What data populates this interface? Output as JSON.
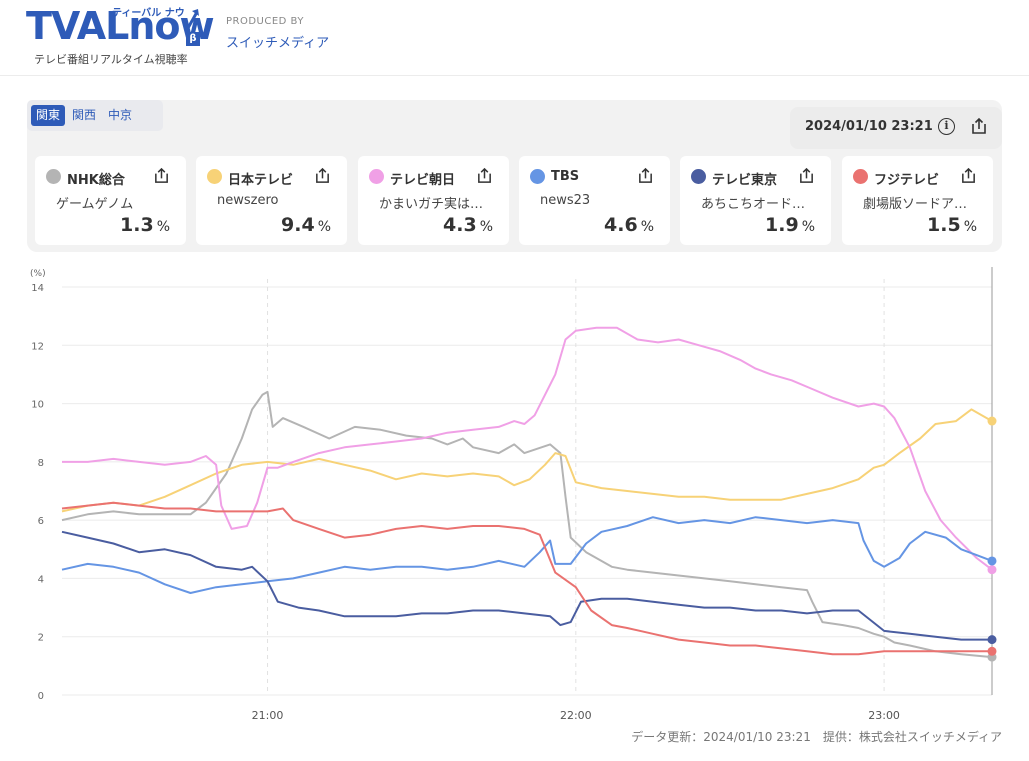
{
  "header": {
    "logo_text": "TVAL",
    "logo_now": "now",
    "logo_ruby": "ティーバル ナウ",
    "logo_beta": "β",
    "logo_sub": "テレビ番組リアルタイム視聴率",
    "produced_by": "PRODUCED BY",
    "producer": "スイッチメディア"
  },
  "regions": [
    {
      "label": "関東",
      "active": true
    },
    {
      "label": "関西",
      "active": false
    },
    {
      "label": "中京",
      "active": false
    }
  ],
  "timestamp": "2024/01/10 23:21",
  "info_icon": "info-icon",
  "share_icon": "share-icon",
  "info_glyph": "i",
  "stations": [
    {
      "name": "NHK総合",
      "program": "ゲームゲノム",
      "value": "1.3",
      "unit": "%",
      "color": "#b4b4b4"
    },
    {
      "name": "日本テレビ",
      "program": "newszero",
      "value": "9.4",
      "unit": "%",
      "color": "#f7d277"
    },
    {
      "name": "テレビ朝日",
      "program": "かまいガチ実は…",
      "value": "4.3",
      "unit": "%",
      "color": "#f0a0e6"
    },
    {
      "name": "TBS",
      "program": "news23",
      "value": "4.6",
      "unit": "%",
      "color": "#6595e4"
    },
    {
      "name": "テレビ東京",
      "program": "あちこちオード…",
      "value": "1.9",
      "unit": "%",
      "color": "#4a5da0"
    },
    {
      "name": "フジテレビ",
      "program": "劇場版ソードア…",
      "value": "1.5",
      "unit": "%",
      "color": "#ea7270"
    }
  ],
  "chart_data": {
    "type": "line",
    "ylabel": "(%)",
    "ylim": [
      0,
      14
    ],
    "yticks": [
      "0",
      "2",
      "4",
      "6",
      "8",
      "10",
      "12",
      "14"
    ],
    "xlim": [
      "20:20",
      "23:21"
    ],
    "xticks": [
      {
        "t": "21:00",
        "label": "21:00"
      },
      {
        "t": "22:00",
        "label": "22:00"
      },
      {
        "t": "23:00",
        "label": "23:00"
      }
    ],
    "grid": true,
    "series": [
      {
        "name": "NHK総合",
        "color": "#b4b4b4",
        "points": [
          [
            0,
            6.0
          ],
          [
            5,
            6.2
          ],
          [
            10,
            6.3
          ],
          [
            15,
            6.2
          ],
          [
            20,
            6.2
          ],
          [
            25,
            6.2
          ],
          [
            28,
            6.6
          ],
          [
            32,
            7.6
          ],
          [
            35,
            8.8
          ],
          [
            37,
            9.8
          ],
          [
            39,
            10.3
          ],
          [
            40,
            10.4
          ],
          [
            41,
            9.2
          ],
          [
            43,
            9.5
          ],
          [
            47,
            9.2
          ],
          [
            52,
            8.8
          ],
          [
            57,
            9.2
          ],
          [
            62,
            9.1
          ],
          [
            67,
            8.9
          ],
          [
            72,
            8.8
          ],
          [
            75,
            8.6
          ],
          [
            78,
            8.8
          ],
          [
            80,
            8.5
          ],
          [
            85,
            8.3
          ],
          [
            88,
            8.6
          ],
          [
            90,
            8.3
          ],
          [
            95,
            8.6
          ],
          [
            97,
            8.3
          ],
          [
            98,
            6.8
          ],
          [
            99,
            5.4
          ],
          [
            102,
            4.9
          ],
          [
            107,
            4.4
          ],
          [
            110,
            4.3
          ],
          [
            115,
            4.2
          ],
          [
            120,
            4.1
          ],
          [
            125,
            4.0
          ],
          [
            130,
            3.9
          ],
          [
            135,
            3.8
          ],
          [
            140,
            3.7
          ],
          [
            145,
            3.6
          ],
          [
            146,
            3.2
          ],
          [
            148,
            2.5
          ],
          [
            152,
            2.4
          ],
          [
            155,
            2.3
          ],
          [
            158,
            2.1
          ],
          [
            160,
            2.0
          ],
          [
            162,
            1.8
          ],
          [
            165,
            1.7
          ],
          [
            170,
            1.5
          ],
          [
            175,
            1.4
          ],
          [
            181,
            1.3
          ]
        ]
      },
      {
        "name": "日本テレビ",
        "color": "#f7d277",
        "points": [
          [
            0,
            6.3
          ],
          [
            5,
            6.5
          ],
          [
            10,
            6.6
          ],
          [
            15,
            6.5
          ],
          [
            20,
            6.8
          ],
          [
            25,
            7.2
          ],
          [
            30,
            7.6
          ],
          [
            35,
            7.9
          ],
          [
            40,
            8.0
          ],
          [
            45,
            7.9
          ],
          [
            50,
            8.1
          ],
          [
            55,
            7.9
          ],
          [
            60,
            7.7
          ],
          [
            65,
            7.4
          ],
          [
            70,
            7.6
          ],
          [
            75,
            7.5
          ],
          [
            80,
            7.6
          ],
          [
            85,
            7.5
          ],
          [
            88,
            7.2
          ],
          [
            91,
            7.4
          ],
          [
            94,
            7.9
          ],
          [
            96,
            8.3
          ],
          [
            98,
            8.2
          ],
          [
            100,
            7.3
          ],
          [
            105,
            7.1
          ],
          [
            110,
            7.0
          ],
          [
            115,
            6.9
          ],
          [
            120,
            6.8
          ],
          [
            125,
            6.8
          ],
          [
            130,
            6.7
          ],
          [
            135,
            6.7
          ],
          [
            140,
            6.7
          ],
          [
            145,
            6.9
          ],
          [
            150,
            7.1
          ],
          [
            155,
            7.4
          ],
          [
            158,
            7.8
          ],
          [
            160,
            7.9
          ],
          [
            163,
            8.3
          ],
          [
            167,
            8.8
          ],
          [
            170,
            9.3
          ],
          [
            174,
            9.4
          ],
          [
            177,
            9.8
          ],
          [
            179,
            9.6
          ],
          [
            181,
            9.4
          ]
        ]
      },
      {
        "name": "テレビ朝日",
        "color": "#f0a0e6",
        "points": [
          [
            0,
            8.0
          ],
          [
            5,
            8.0
          ],
          [
            10,
            8.1
          ],
          [
            15,
            8.0
          ],
          [
            20,
            7.9
          ],
          [
            25,
            8.0
          ],
          [
            28,
            8.2
          ],
          [
            30,
            7.9
          ],
          [
            31,
            6.5
          ],
          [
            33,
            5.7
          ],
          [
            36,
            5.8
          ],
          [
            38,
            6.6
          ],
          [
            40,
            7.8
          ],
          [
            42,
            7.8
          ],
          [
            45,
            8.0
          ],
          [
            50,
            8.3
          ],
          [
            55,
            8.5
          ],
          [
            60,
            8.6
          ],
          [
            65,
            8.7
          ],
          [
            70,
            8.8
          ],
          [
            75,
            9.0
          ],
          [
            80,
            9.1
          ],
          [
            85,
            9.2
          ],
          [
            88,
            9.4
          ],
          [
            90,
            9.3
          ],
          [
            92,
            9.6
          ],
          [
            94,
            10.3
          ],
          [
            96,
            11.0
          ],
          [
            98,
            12.2
          ],
          [
            100,
            12.5
          ],
          [
            104,
            12.6
          ],
          [
            108,
            12.6
          ],
          [
            112,
            12.2
          ],
          [
            116,
            12.1
          ],
          [
            120,
            12.2
          ],
          [
            124,
            12.0
          ],
          [
            128,
            11.8
          ],
          [
            132,
            11.5
          ],
          [
            135,
            11.2
          ],
          [
            138,
            11.0
          ],
          [
            142,
            10.8
          ],
          [
            146,
            10.5
          ],
          [
            150,
            10.2
          ],
          [
            155,
            9.9
          ],
          [
            158,
            10.0
          ],
          [
            160,
            9.9
          ],
          [
            162,
            9.5
          ],
          [
            165,
            8.5
          ],
          [
            168,
            7.0
          ],
          [
            171,
            6.0
          ],
          [
            174,
            5.4
          ],
          [
            178,
            4.7
          ],
          [
            181,
            4.3
          ]
        ]
      },
      {
        "name": "TBS",
        "color": "#6595e4",
        "points": [
          [
            0,
            4.3
          ],
          [
            5,
            4.5
          ],
          [
            10,
            4.4
          ],
          [
            15,
            4.2
          ],
          [
            20,
            3.8
          ],
          [
            25,
            3.5
          ],
          [
            30,
            3.7
          ],
          [
            35,
            3.8
          ],
          [
            40,
            3.9
          ],
          [
            45,
            4.0
          ],
          [
            50,
            4.2
          ],
          [
            55,
            4.4
          ],
          [
            60,
            4.3
          ],
          [
            65,
            4.4
          ],
          [
            70,
            4.4
          ],
          [
            75,
            4.3
          ],
          [
            80,
            4.4
          ],
          [
            85,
            4.6
          ],
          [
            90,
            4.4
          ],
          [
            93,
            4.9
          ],
          [
            95,
            5.3
          ],
          [
            96,
            4.5
          ],
          [
            99,
            4.5
          ],
          [
            102,
            5.2
          ],
          [
            105,
            5.6
          ],
          [
            110,
            5.8
          ],
          [
            115,
            6.1
          ],
          [
            120,
            5.9
          ],
          [
            125,
            6.0
          ],
          [
            130,
            5.9
          ],
          [
            135,
            6.1
          ],
          [
            140,
            6.0
          ],
          [
            145,
            5.9
          ],
          [
            150,
            6.0
          ],
          [
            155,
            5.9
          ],
          [
            156,
            5.3
          ],
          [
            158,
            4.6
          ],
          [
            160,
            4.4
          ],
          [
            163,
            4.7
          ],
          [
            165,
            5.2
          ],
          [
            168,
            5.6
          ],
          [
            172,
            5.4
          ],
          [
            175,
            5.0
          ],
          [
            178,
            4.8
          ],
          [
            181,
            4.6
          ]
        ]
      },
      {
        "name": "テレビ東京",
        "color": "#4a5da0",
        "points": [
          [
            0,
            5.6
          ],
          [
            5,
            5.4
          ],
          [
            10,
            5.2
          ],
          [
            15,
            4.9
          ],
          [
            20,
            5.0
          ],
          [
            25,
            4.8
          ],
          [
            30,
            4.4
          ],
          [
            35,
            4.3
          ],
          [
            37,
            4.4
          ],
          [
            40,
            3.9
          ],
          [
            42,
            3.2
          ],
          [
            46,
            3.0
          ],
          [
            50,
            2.9
          ],
          [
            55,
            2.7
          ],
          [
            60,
            2.7
          ],
          [
            65,
            2.7
          ],
          [
            70,
            2.8
          ],
          [
            75,
            2.8
          ],
          [
            80,
            2.9
          ],
          [
            85,
            2.9
          ],
          [
            90,
            2.8
          ],
          [
            95,
            2.7
          ],
          [
            97,
            2.4
          ],
          [
            99,
            2.5
          ],
          [
            101,
            3.2
          ],
          [
            105,
            3.3
          ],
          [
            110,
            3.3
          ],
          [
            115,
            3.2
          ],
          [
            120,
            3.1
          ],
          [
            125,
            3.0
          ],
          [
            130,
            3.0
          ],
          [
            135,
            2.9
          ],
          [
            140,
            2.9
          ],
          [
            145,
            2.8
          ],
          [
            150,
            2.9
          ],
          [
            155,
            2.9
          ],
          [
            160,
            2.2
          ],
          [
            165,
            2.1
          ],
          [
            170,
            2.0
          ],
          [
            175,
            1.9
          ],
          [
            181,
            1.9
          ]
        ]
      },
      {
        "name": "フジテレビ",
        "color": "#ea7270",
        "points": [
          [
            0,
            6.4
          ],
          [
            5,
            6.5
          ],
          [
            10,
            6.6
          ],
          [
            15,
            6.5
          ],
          [
            20,
            6.4
          ],
          [
            25,
            6.4
          ],
          [
            30,
            6.3
          ],
          [
            35,
            6.3
          ],
          [
            40,
            6.3
          ],
          [
            43,
            6.4
          ],
          [
            45,
            6.0
          ],
          [
            50,
            5.7
          ],
          [
            55,
            5.4
          ],
          [
            60,
            5.5
          ],
          [
            65,
            5.7
          ],
          [
            70,
            5.8
          ],
          [
            75,
            5.7
          ],
          [
            80,
            5.8
          ],
          [
            85,
            5.8
          ],
          [
            90,
            5.7
          ],
          [
            93,
            5.5
          ],
          [
            96,
            4.2
          ],
          [
            100,
            3.7
          ],
          [
            103,
            2.9
          ],
          [
            107,
            2.4
          ],
          [
            110,
            2.3
          ],
          [
            115,
            2.1
          ],
          [
            120,
            1.9
          ],
          [
            125,
            1.8
          ],
          [
            130,
            1.7
          ],
          [
            135,
            1.7
          ],
          [
            140,
            1.6
          ],
          [
            145,
            1.5
          ],
          [
            150,
            1.4
          ],
          [
            155,
            1.4
          ],
          [
            160,
            1.5
          ],
          [
            165,
            1.5
          ],
          [
            170,
            1.5
          ],
          [
            175,
            1.5
          ],
          [
            181,
            1.5
          ]
        ]
      }
    ]
  },
  "footer": "データ更新：2024/01/10 23:21　提供：株式会社スイッチメディア"
}
